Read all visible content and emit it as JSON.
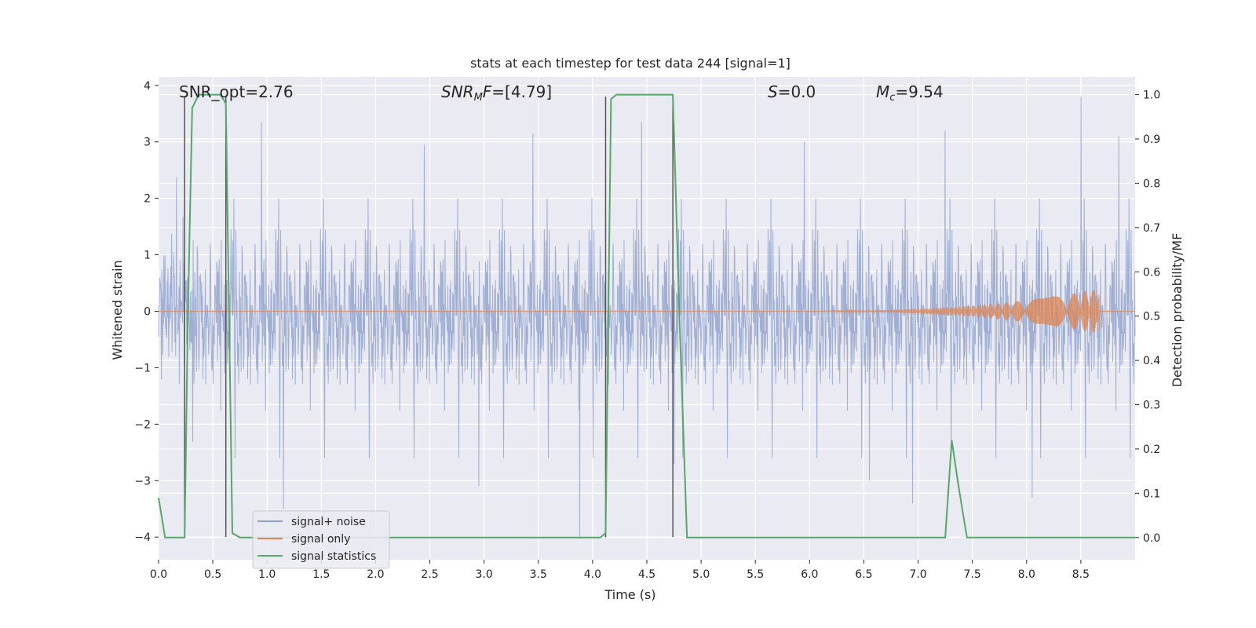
{
  "chart_data": {
    "type": "line",
    "title": "stats at each timestep for test data 244 [signal=1]",
    "xlabel": "Time (s)",
    "ylabel": "Whitened strain",
    "ylabel_right": "Detection probability/MF",
    "xlim": [
      0.0,
      9.0
    ],
    "ylim": [
      -4.4,
      4.15
    ],
    "ylim_right": [
      -0.05,
      1.04
    ],
    "x_ticks": [
      0.0,
      0.5,
      1.0,
      1.5,
      2.0,
      2.5,
      3.0,
      3.5,
      4.0,
      4.5,
      5.0,
      5.5,
      6.0,
      6.5,
      7.0,
      7.5,
      8.0,
      8.5
    ],
    "x_tick_labels": [
      "0.0",
      "0.5",
      "1.0",
      "1.5",
      "2.0",
      "2.5",
      "3.0",
      "3.5",
      "4.0",
      "4.5",
      "5.0",
      "5.5",
      "6.0",
      "6.5",
      "7.0",
      "7.5",
      "8.0",
      "8.5"
    ],
    "y_ticks": [
      -4,
      -3,
      -2,
      -1,
      0,
      1,
      2,
      3,
      4
    ],
    "y_tick_labels": [
      "−4",
      "−3",
      "−2",
      "−1",
      "0",
      "1",
      "2",
      "3",
      "4"
    ],
    "y_ticks_right": [
      0.0,
      0.1,
      0.2,
      0.3,
      0.4,
      0.5,
      0.6,
      0.7,
      0.8,
      0.9,
      1.0
    ],
    "y_tick_labels_right": [
      "0.0",
      "0.1",
      "0.2",
      "0.3",
      "0.4",
      "0.5",
      "0.6",
      "0.7",
      "0.8",
      "0.9",
      "1.0"
    ],
    "grid": true,
    "legend_position": "lower-left",
    "annotations": [
      {
        "text": "SNR_opt=2.76",
        "x": 0.2
      },
      {
        "text": "SNR_MF=[4.79]",
        "x": 2.6
      },
      {
        "text": "S=0.0",
        "x": 5.6
      },
      {
        "text": "M_c=9.54",
        "x": 6.6
      }
    ],
    "series": [
      {
        "name": "signal+ noise",
        "color": "#8da0cb",
        "axis": "left",
        "description_stats": {
          "typical_min": -2.0,
          "typical_max": 2.2,
          "peak_max": 3.8,
          "peak_min": -4.0
        },
        "spikes": [
          {
            "x": 0.95,
            "y": 3.35
          },
          {
            "x": 1.15,
            "y": -3.5
          },
          {
            "x": 2.45,
            "y": 2.95
          },
          {
            "x": 2.95,
            "y": -3.1
          },
          {
            "x": 3.45,
            "y": 3.15
          },
          {
            "x": 3.88,
            "y": -4.0
          },
          {
            "x": 4.45,
            "y": 3.35
          },
          {
            "x": 4.75,
            "y": -2.7
          },
          {
            "x": 5.95,
            "y": 3.0
          },
          {
            "x": 6.55,
            "y": -3.0
          },
          {
            "x": 6.95,
            "y": -3.4
          },
          {
            "x": 7.25,
            "y": 3.2
          },
          {
            "x": 8.05,
            "y": -3.3
          },
          {
            "x": 8.5,
            "y": 3.8
          },
          {
            "x": 8.85,
            "y": 3.1
          }
        ]
      },
      {
        "name": "signal only",
        "color": "#dd8452",
        "axis": "left",
        "chirp": {
          "start_x": 5.5,
          "end_x": 8.67,
          "max_amplitude": 0.4
        }
      },
      {
        "name": "signal statistics",
        "color": "#55a868",
        "axis": "right",
        "x": [
          0.0,
          0.06,
          0.1,
          0.24,
          0.27,
          0.31,
          0.37,
          0.5,
          0.57,
          0.62,
          0.68,
          0.75,
          1.0,
          2.0,
          3.0,
          4.0,
          4.07,
          4.12,
          4.17,
          4.22,
          4.3,
          4.5,
          4.7,
          4.74,
          4.8,
          4.87,
          5.0,
          6.0,
          7.0,
          7.25,
          7.31,
          7.37,
          7.45,
          7.6,
          8.0,
          9.0
        ],
        "y": [
          0.09,
          0.0,
          0.0,
          0.0,
          0.5,
          0.97,
          1.0,
          1.0,
          1.0,
          0.98,
          0.01,
          0.0,
          0.0,
          0.0,
          0.0,
          0.0,
          0.0,
          0.01,
          0.99,
          1.0,
          1.0,
          1.0,
          1.0,
          1.0,
          0.5,
          0.0,
          0.0,
          0.0,
          0.0,
          0.0,
          0.22,
          0.12,
          0.0,
          0.0,
          0.0,
          0.0
        ]
      }
    ],
    "vertical_lines": [
      {
        "x": 0.24,
        "y_from": -4.0,
        "y_to": 3.8
      },
      {
        "x": 0.62,
        "y_from": -4.0,
        "y_to": 3.8
      },
      {
        "x": 4.12,
        "y_from": -4.0,
        "y_to": 3.8
      },
      {
        "x": 4.74,
        "y_from": -4.0,
        "y_to": 3.8
      }
    ]
  },
  "legend": [
    {
      "label": "signal+ noise",
      "color": "#8da0cb"
    },
    {
      "label": "signal only",
      "color": "#dd8452"
    },
    {
      "label": "signal statistics",
      "color": "#55a868"
    }
  ]
}
